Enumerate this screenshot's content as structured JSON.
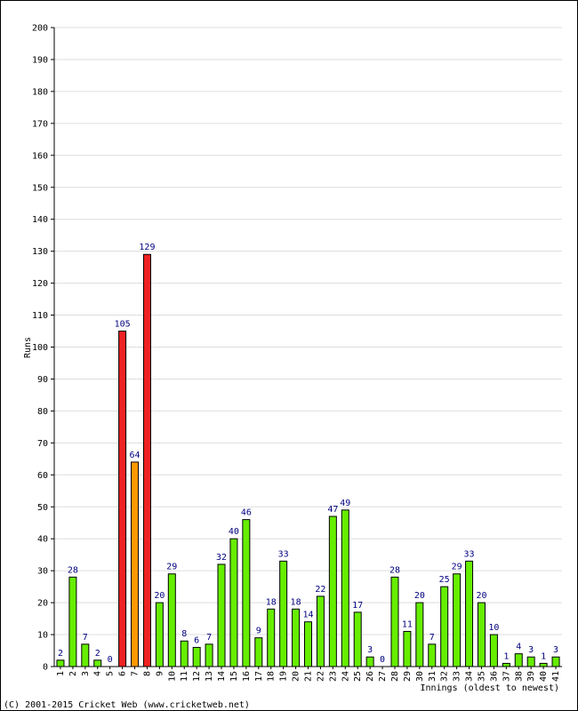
{
  "chart_data": {
    "type": "bar",
    "xlabel": "Innings (oldest to newest)",
    "ylabel": "Runs",
    "ylim": [
      0,
      200
    ],
    "ystep": 10,
    "grid": true,
    "categories": [
      "1",
      "2",
      "3",
      "4",
      "5",
      "6",
      "7",
      "8",
      "9",
      "10",
      "11",
      "12",
      "13",
      "14",
      "15",
      "16",
      "17",
      "18",
      "19",
      "20",
      "21",
      "22",
      "23",
      "24",
      "25",
      "26",
      "27",
      "28",
      "29",
      "30",
      "31",
      "32",
      "33",
      "34",
      "35",
      "36",
      "37",
      "38",
      "39",
      "40",
      "41"
    ],
    "values": [
      2,
      28,
      7,
      2,
      0,
      105,
      64,
      129,
      20,
      29,
      8,
      6,
      7,
      32,
      40,
      46,
      9,
      18,
      33,
      18,
      14,
      22,
      47,
      49,
      17,
      3,
      0,
      28,
      11,
      20,
      7,
      25,
      29,
      33,
      20,
      10,
      1,
      4,
      3,
      1,
      3
    ],
    "colors": {
      "normal": "#66ee00",
      "fifty": "#ff9900",
      "hundred": "#ee2222",
      "grid": "#dddddd",
      "label": "#000080"
    }
  },
  "footer": "(C) 2001-2015 Cricket Web (www.cricketweb.net)"
}
